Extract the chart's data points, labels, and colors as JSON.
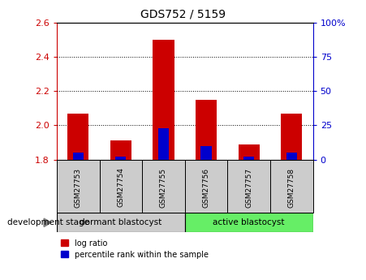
{
  "title": "GDS752 / 5159",
  "samples": [
    "GSM27753",
    "GSM27754",
    "GSM27755",
    "GSM27756",
    "GSM27757",
    "GSM27758"
  ],
  "log_ratio_values": [
    2.07,
    1.91,
    2.5,
    2.15,
    1.89,
    2.07
  ],
  "percentile_values": [
    5,
    2,
    23,
    10,
    2,
    5
  ],
  "base_value": 1.8,
  "ylim_left": [
    1.8,
    2.6
  ],
  "ylim_right": [
    0,
    100
  ],
  "yticks_left": [
    1.8,
    2.0,
    2.2,
    2.4,
    2.6
  ],
  "yticks_right": [
    0,
    25,
    50,
    75,
    100
  ],
  "ytick_labels_right": [
    "0",
    "25",
    "50",
    "75",
    "100%"
  ],
  "bar_color_red": "#cc0000",
  "bar_color_blue": "#0000cc",
  "bar_width": 0.5,
  "blue_bar_width": 0.25,
  "group1_label": "dormant blastocyst",
  "group2_label": "active blastocyst",
  "group1_indices": [
    0,
    1,
    2
  ],
  "group2_indices": [
    3,
    4,
    5
  ],
  "group1_color": "#cccccc",
  "group2_color": "#66ee66",
  "legend_red_label": "log ratio",
  "legend_blue_label": "percentile rank within the sample",
  "development_stage_label": "development stage",
  "tick_label_color_left": "#cc0000",
  "tick_label_color_right": "#0000cc"
}
